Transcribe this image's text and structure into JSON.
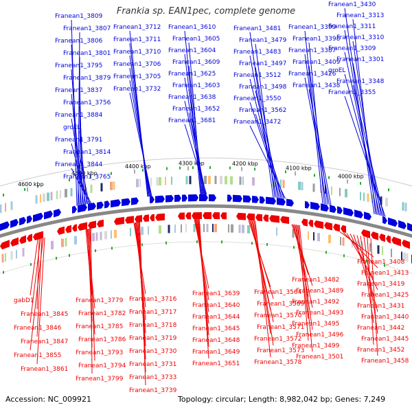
{
  "title": "Frankia sp. EAN1pec, complete genome",
  "footer": {
    "accession": "Accession: NC_009921",
    "topology": "Topology: circular; Length: 8,982,042 bp; Genes: 7,249"
  },
  "colors": {
    "forward_strand": "#0000dd",
    "reverse_strand": "#ee0000",
    "backbone": "#888888",
    "rna_marks": "#22aa22"
  },
  "scale_ticks": [
    "4000 kbp",
    "4100 kbp",
    "4200 kbp",
    "4300 kbp",
    "4400 kbp",
    "4500 kbp",
    "4600 kbp"
  ],
  "forward_genes": [
    "Franean1_3809",
    "Franean1_3807",
    "Franean1_3806",
    "Franean1_3801",
    "Franean1_3795",
    "Franean1_3879",
    "Franean1_3837",
    "Franean1_3756",
    "Franean1_3884",
    "groEL",
    "Franean1_3791",
    "Franean1_3814",
    "Franean1_3844",
    "Franean1_3765",
    "Franean1_3712",
    "Franean1_3711",
    "Franean1_3710",
    "Franean1_3706",
    "Franean1_3705",
    "Franean1_3732",
    "Franean1_3610",
    "Franean1_3605",
    "Franean1_3604",
    "Franean1_3609",
    "Franean1_3625",
    "Franean1_3603",
    "Franean1_3638",
    "Franean1_3652",
    "Franean1_3681",
    "Franean1_3481",
    "Franean1_3479",
    "Franean1_3483",
    "Franean1_3497",
    "Franean1_3512",
    "Franean1_3498",
    "Franean1_3550",
    "Franean1_3562",
    "Franean1_3472",
    "Franean1_3399",
    "Franean1_3398",
    "Franean1_3387",
    "Franean1_3409",
    "Franean1_3426",
    "Franean1_3438",
    "Franean1_3430",
    "Franean1_3313",
    "Franean1_3311",
    "Franean1_3310",
    "Franean1_3309",
    "Franean1_3301",
    "groEL",
    "Franean1_3348",
    "Franean1_3355"
  ],
  "reverse_genes": [
    "Franean1_3408",
    "Franean1_3413",
    "Franean1_3419",
    "Franean1_3425",
    "Franean1_3431",
    "Franean1_3440",
    "Franean1_3442",
    "Franean1_3445",
    "Franean1_3452",
    "Franean1_3458",
    "Franean1_3482",
    "Franean1_3489",
    "Franean1_3492",
    "Franean1_3493",
    "Franean1_3495",
    "Franean1_3496",
    "Franean1_3499",
    "Franean1_3501",
    "Franean1_3564",
    "Franean1_3569",
    "Franean1_3570",
    "Franean1_3571",
    "Franean1_3572",
    "Franean1_3573",
    "Franean1_3578",
    "Franean1_3639",
    "Franean1_3640",
    "Franean1_3644",
    "Franean1_3645",
    "Franean1_3648",
    "Franean1_3649",
    "Franean1_3651",
    "Franean1_3716",
    "Franean1_3717",
    "Franean1_3718",
    "Franean1_3719",
    "Franean1_3730",
    "Franean1_3731",
    "Franean1_3733",
    "Franean1_3739",
    "Franean1_3779",
    "Franean1_3782",
    "Franean1_3785",
    "Franean1_3786",
    "Franean1_3793",
    "Franean1_3794",
    "Franean1_3799",
    "gabD1",
    "Franean1_3845",
    "Franean1_3846",
    "Franean1_3847",
    "Franean1_3855",
    "Franean1_3861"
  ]
}
